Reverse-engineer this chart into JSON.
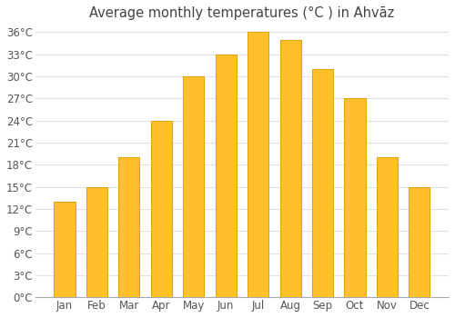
{
  "title": "Average monthly temperatures (°C ) in Ahvāz",
  "months": [
    "Jan",
    "Feb",
    "Mar",
    "Apr",
    "May",
    "Jun",
    "Jul",
    "Aug",
    "Sep",
    "Oct",
    "Nov",
    "Dec"
  ],
  "values": [
    13,
    15,
    19,
    24,
    30,
    33,
    36,
    35,
    31,
    27,
    19,
    15
  ],
  "bar_color_face": "#FFC02A",
  "bar_color_edge": "#E8A000",
  "background_color": "#ffffff",
  "plot_bg_color": "#ffffff",
  "grid_color": "#e0e0e0",
  "ylim": [
    0,
    37
  ],
  "yticks": [
    0,
    3,
    6,
    9,
    12,
    15,
    18,
    21,
    24,
    27,
    30,
    33,
    36
  ],
  "ytick_labels": [
    "0°C",
    "3°C",
    "6°C",
    "9°C",
    "12°C",
    "15°C",
    "18°C",
    "21°C",
    "24°C",
    "27°C",
    "30°C",
    "33°C",
    "36°C"
  ],
  "title_fontsize": 10.5,
  "tick_fontsize": 8.5,
  "title_color": "#444444",
  "tick_color": "#555555"
}
